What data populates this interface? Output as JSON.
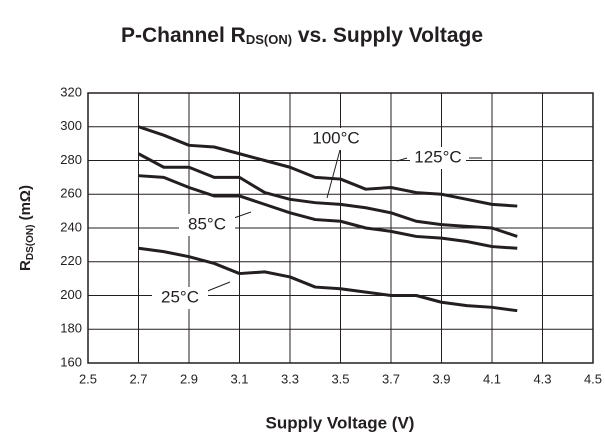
{
  "chart_data": {
    "type": "line",
    "title": [
      "P-Channel R",
      "DS(ON)",
      " vs. Supply Voltage"
    ],
    "xlabel": "Supply Voltage (V)",
    "ylabel": [
      "R",
      "DS(ON)",
      " (mΩ)"
    ],
    "x": [
      2.7,
      2.8,
      2.9,
      3.0,
      3.1,
      3.2,
      3.3,
      3.4,
      3.5,
      3.6,
      3.7,
      3.8,
      3.9,
      4.0,
      4.1,
      4.2
    ],
    "series": [
      {
        "name": "125°C",
        "color": "#231f20",
        "values": [
          300,
          295,
          289,
          288,
          284,
          280,
          276,
          270,
          269,
          263,
          264,
          261,
          260,
          257,
          254,
          253
        ]
      },
      {
        "name": "100°C",
        "color": "#231f20",
        "values": [
          284,
          276,
          276,
          270,
          270,
          261,
          257,
          255,
          254,
          252,
          249,
          244,
          242,
          241,
          240,
          235
        ]
      },
      {
        "name": "85°C",
        "color": "#231f20",
        "values": [
          271,
          270,
          264,
          259,
          259,
          254,
          249,
          245,
          244,
          240,
          238,
          235,
          234,
          232,
          229,
          228
        ]
      },
      {
        "name": "25°C",
        "color": "#231f20",
        "values": [
          228,
          226,
          223,
          219,
          213,
          214,
          211,
          205,
          204,
          202,
          200,
          200,
          196,
          194,
          193,
          191
        ]
      }
    ],
    "xlim": [
      2.5,
      4.5
    ],
    "xticks": [
      2.5,
      2.7,
      2.9,
      3.1,
      3.3,
      3.5,
      3.7,
      3.9,
      4.1,
      4.3,
      4.5
    ],
    "ylim": [
      160,
      320
    ],
    "yticks": [
      160,
      180,
      200,
      220,
      240,
      260,
      280,
      300,
      320
    ],
    "grid": true
  }
}
